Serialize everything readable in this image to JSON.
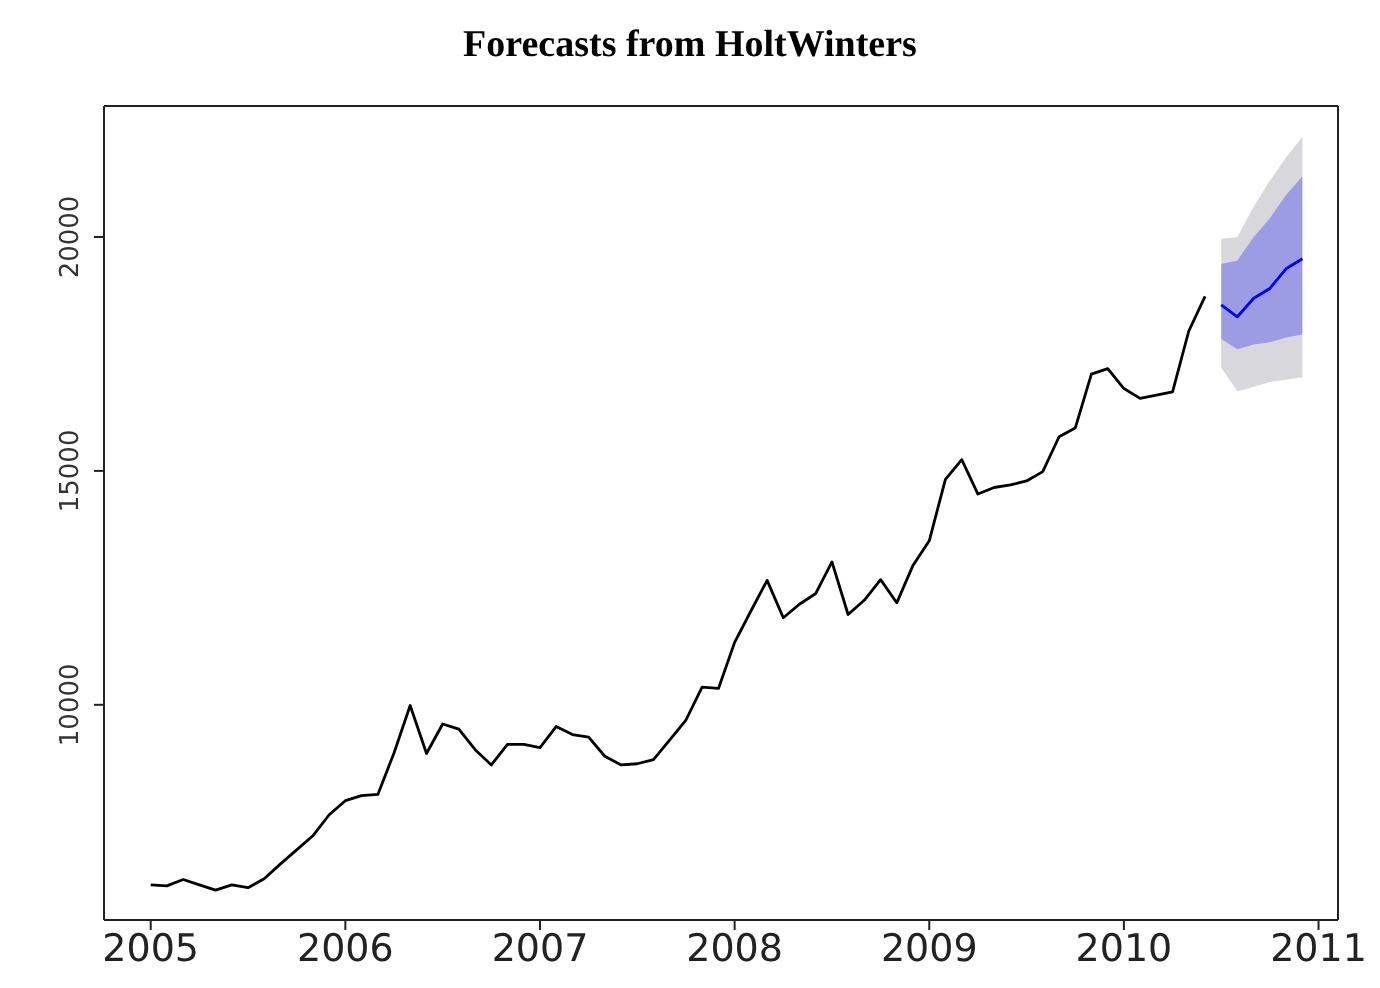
{
  "chart_data": {
    "type": "line",
    "title": "Forecasts from HoltWinters",
    "xlim": [
      2004.76,
      2011.1
    ],
    "xticks": [
      2005,
      2006,
      2007,
      2008,
      2009,
      2010,
      2011
    ],
    "ylim": [
      5400,
      22800
    ],
    "yticks": [
      10000,
      15000,
      20000
    ],
    "grid": false,
    "legend": false,
    "marker": "none",
    "line_style": "solid",
    "series": [
      {
        "color": "#000000",
        "x": [
          2005,
          2005.083,
          2005.167,
          2005.25,
          2005.333,
          2005.417,
          2005.5,
          2005.583,
          2005.667,
          2005.75,
          2005.833,
          2005.917,
          2006,
          2006.083,
          2006.167,
          2006.25,
          2006.333,
          2006.417,
          2006.5,
          2006.583,
          2006.667,
          2006.75,
          2006.833,
          2006.917,
          2007,
          2007.083,
          2007.167,
          2007.25,
          2007.333,
          2007.417,
          2007.5,
          2007.583,
          2007.667,
          2007.75,
          2007.833,
          2007.917,
          2008,
          2008.083,
          2008.167,
          2008.25,
          2008.333,
          2008.417,
          2008.5,
          2008.583,
          2008.667,
          2008.75,
          2008.833,
          2008.917,
          2009,
          2009.083,
          2009.167,
          2009.25,
          2009.333,
          2009.417,
          2009.5,
          2009.583,
          2009.667,
          2009.75,
          2009.833,
          2009.917,
          2010,
          2010.083,
          2010.167,
          2010.25,
          2010.333,
          2010.417
        ],
        "values": [
          6150,
          6130,
          6265,
          6150,
          6040,
          6150,
          6090,
          6280,
          6600,
          6900,
          7200,
          7650,
          7950,
          8060,
          8085,
          8970,
          9985,
          8960,
          9590,
          9480,
          9040,
          8715,
          9155,
          9155,
          9085,
          9535,
          9365,
          9310,
          8900,
          8715,
          8740,
          8830,
          9250,
          9675,
          10380,
          10350,
          11335,
          12000,
          12660,
          11860,
          12150,
          12380,
          13055,
          11930,
          12240,
          12675,
          12180,
          12985,
          13505,
          14820,
          15240,
          14505,
          14645,
          14700,
          14785,
          14985,
          15730,
          15915,
          17070,
          17185,
          16760,
          16550,
          16620,
          16690,
          17985,
          18730
        ]
      },
      {
        "color": "#d8d8dc",
        "x": [
          2010.5,
          2010.583,
          2010.667,
          2010.75,
          2010.833,
          2010.917
        ],
        "values": [
          null,
          null,
          null,
          null,
          null,
          null
        ],
        "lower": [
          17210,
          16700,
          16800,
          16900,
          16950,
          17000
        ],
        "upper": [
          19955,
          20000,
          20650,
          21200,
          21700,
          22140
        ]
      },
      {
        "color": "#0000ff",
        "x": [
          2010.5,
          2010.583,
          2010.667,
          2010.75,
          2010.833,
          2010.917
        ],
        "values": [
          18550,
          18295,
          18690,
          18900,
          19320,
          19535
        ],
        "lower": [
          17820,
          17600,
          17700,
          17750,
          17850,
          17915
        ],
        "upper": [
          19425,
          19500,
          20000,
          20400,
          20900,
          21295
        ]
      }
    ]
  }
}
